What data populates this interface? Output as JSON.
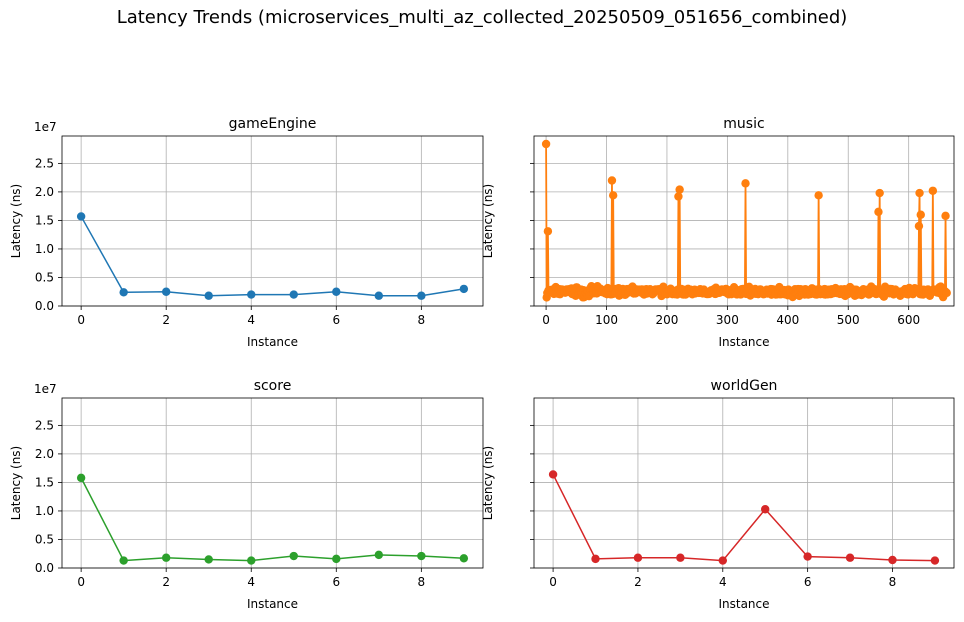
{
  "figure": {
    "title": "Latency Trends (microservices_multi_az_collected_20250509_051656_combined)"
  },
  "chart_data": [
    {
      "type": "line",
      "title": "gameEngine",
      "xlabel": "Instance",
      "ylabel": "Latency (ns)",
      "y_offset_label": "1e7",
      "color": "#1f77b4",
      "marker": "circle",
      "grid": true,
      "xlim": [
        -0.45,
        9.45
      ],
      "ylim": [
        0,
        29800000
      ],
      "xticks": [
        0,
        2,
        4,
        6,
        8
      ],
      "yticks": [
        0,
        5000000,
        10000000,
        15000000,
        20000000,
        25000000
      ],
      "ytick_labels": [
        "0.0",
        "0.5",
        "1.0",
        "1.5",
        "2.0",
        "2.5"
      ],
      "x": [
        0,
        1,
        2,
        3,
        4,
        5,
        6,
        7,
        8,
        9
      ],
      "y": [
        15700000,
        2400000,
        2500000,
        1800000,
        2000000,
        2000000,
        2500000,
        1800000,
        1800000,
        3000000
      ]
    },
    {
      "type": "line",
      "title": "music",
      "xlabel": "Instance",
      "ylabel": "Latency (ns)",
      "y_offset_label": "",
      "color": "#ff7f0e",
      "marker": "circle",
      "grid": true,
      "xlim": [
        -20,
        675
      ],
      "ylim": [
        0,
        29800000
      ],
      "xticks": [
        0,
        100,
        200,
        300,
        400,
        500,
        600
      ],
      "yticks": [
        0,
        5000000,
        10000000,
        15000000,
        20000000,
        25000000
      ],
      "ytick_labels": [
        "",
        "",
        "",
        "",
        "",
        ""
      ],
      "n_points": 664,
      "baseline": 2500000,
      "baseline_jitter": [
        1600000,
        3800000
      ],
      "spikes": [
        {
          "x": 0,
          "y": 28400000
        },
        {
          "x": 3,
          "y": 13100000
        },
        {
          "x": 109,
          "y": 22000000
        },
        {
          "x": 111,
          "y": 19400000
        },
        {
          "x": 219,
          "y": 19200000
        },
        {
          "x": 221,
          "y": 20400000
        },
        {
          "x": 330,
          "y": 21500000
        },
        {
          "x": 451,
          "y": 19400000
        },
        {
          "x": 550,
          "y": 16500000
        },
        {
          "x": 552,
          "y": 19800000
        },
        {
          "x": 617,
          "y": 14000000
        },
        {
          "x": 618,
          "y": 19800000
        },
        {
          "x": 620,
          "y": 16000000
        },
        {
          "x": 640,
          "y": 20200000
        },
        {
          "x": 661,
          "y": 15800000
        }
      ]
    },
    {
      "type": "line",
      "title": "score",
      "xlabel": "Instance",
      "ylabel": "Latency (ns)",
      "y_offset_label": "1e7",
      "color": "#2ca02c",
      "marker": "circle",
      "grid": true,
      "xlim": [
        -0.45,
        9.45
      ],
      "ylim": [
        0,
        29800000
      ],
      "xticks": [
        0,
        2,
        4,
        6,
        8
      ],
      "yticks": [
        0,
        5000000,
        10000000,
        15000000,
        20000000,
        25000000
      ],
      "ytick_labels": [
        "0.0",
        "0.5",
        "1.0",
        "1.5",
        "2.0",
        "2.5"
      ],
      "x": [
        0,
        1,
        2,
        3,
        4,
        5,
        6,
        7,
        8,
        9
      ],
      "y": [
        15800000,
        1300000,
        1800000,
        1500000,
        1300000,
        2100000,
        1600000,
        2300000,
        2100000,
        1700000
      ]
    },
    {
      "type": "line",
      "title": "worldGen",
      "xlabel": "Instance",
      "ylabel": "Latency (ns)",
      "y_offset_label": "",
      "color": "#d62728",
      "marker": "circle",
      "grid": true,
      "xlim": [
        -0.45,
        9.45
      ],
      "ylim": [
        0,
        29800000
      ],
      "xticks": [
        0,
        2,
        4,
        6,
        8
      ],
      "yticks": [
        0,
        5000000,
        10000000,
        15000000,
        20000000,
        25000000
      ],
      "ytick_labels": [
        "",
        "",
        "",
        "",
        "",
        ""
      ],
      "x": [
        0,
        1,
        2,
        3,
        4,
        5,
        6,
        7,
        8,
        9
      ],
      "y": [
        16400000,
        1600000,
        1800000,
        1800000,
        1300000,
        10300000,
        2000000,
        1800000,
        1400000,
        1300000
      ]
    }
  ]
}
